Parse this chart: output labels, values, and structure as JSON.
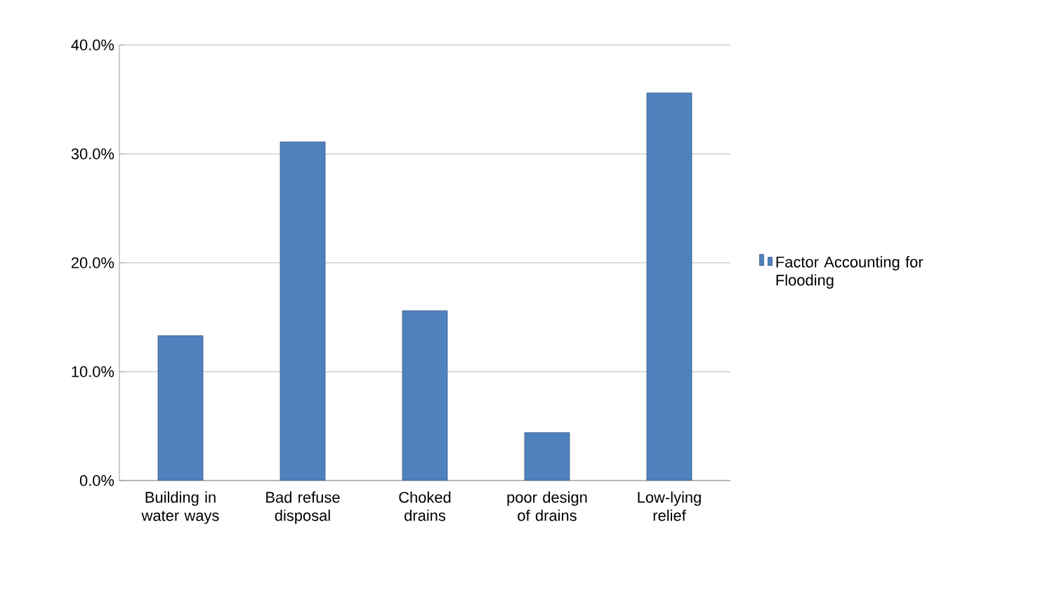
{
  "chart_data": {
    "type": "bar",
    "categories": [
      "Building in water ways",
      "Bad refuse disposal",
      "Choked drains",
      "poor design of drains",
      "Low-lying relief"
    ],
    "series": [
      {
        "name": "Factor Accounting for Flooding",
        "color": "#4f81bd",
        "values": [
          13.3,
          31.1,
          15.6,
          4.4,
          35.6
        ]
      }
    ],
    "ylim": [
      0,
      40
    ],
    "yticks": [
      {
        "value": 0,
        "label": "0.0%"
      },
      {
        "value": 10,
        "label": "10.0%"
      },
      {
        "value": 20,
        "label": "20.0%"
      },
      {
        "value": 30,
        "label": "30.0%"
      },
      {
        "value": 40,
        "label": "40.0%"
      }
    ],
    "grid": "y",
    "legend": "right"
  }
}
